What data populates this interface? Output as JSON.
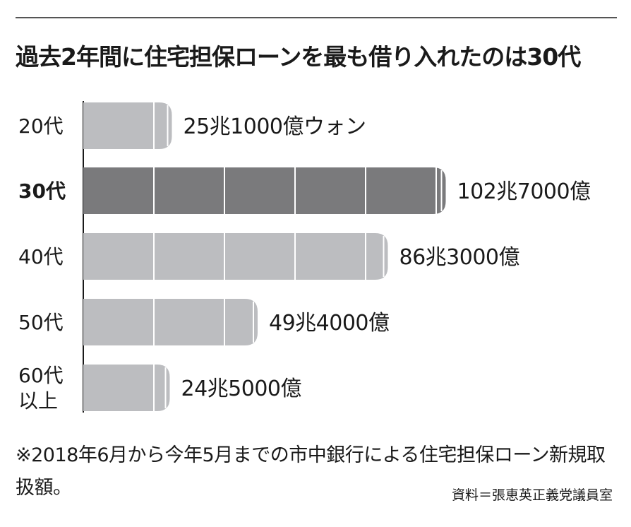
{
  "header": {
    "title": "過去2年間に住宅担保ローンを最も借り入れたのは30代"
  },
  "chart_data": {
    "type": "bar",
    "orientation": "horizontal",
    "unit": "億ウォン",
    "categories": [
      "20代",
      "30代",
      "40代",
      "50代",
      "60代\n以上"
    ],
    "values": [
      251000,
      1027000,
      863000,
      494000,
      245000
    ],
    "value_labels": [
      "25兆1000億ウォン",
      "102兆7000億",
      "86兆3000億",
      "49兆4000億",
      "24兆5000億"
    ],
    "segment_size": 200000,
    "highlight_index": 1,
    "xlim": [
      0,
      1100000
    ],
    "colors": {
      "bar": "#bcbdc0",
      "highlight": "#7a7a7c",
      "divider": "#ffffff",
      "axis": "#1a1a1a"
    },
    "grid": false,
    "legend": "none"
  },
  "footer": {
    "note": "※2018年6月から今年5月までの市中銀行による住宅担保ローン新規取扱額。",
    "source": "資料＝張恵英正義党議員室"
  }
}
